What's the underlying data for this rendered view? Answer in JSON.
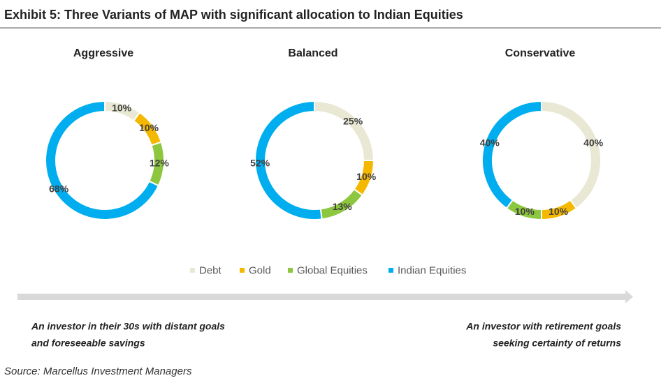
{
  "title": "Exhibit 5: Three Variants of MAP with significant allocation to Indian Equities",
  "chart_data": [
    {
      "type": "donut",
      "title": "Aggressive",
      "categories": [
        "Debt",
        "Gold",
        "Global Equities",
        "Indian Equities"
      ],
      "values": [
        10,
        10,
        12,
        68
      ],
      "value_labels": [
        "10%",
        "10%",
        "12%",
        "68%"
      ],
      "colors": [
        "#e9e8d4",
        "#f5b800",
        "#8dc63f",
        "#00aeef"
      ]
    },
    {
      "type": "donut",
      "title": "Balanced",
      "categories": [
        "Debt",
        "Gold",
        "Global Equities",
        "Indian Equities"
      ],
      "values": [
        25,
        10,
        13,
        52
      ],
      "value_labels": [
        "25%",
        "10%",
        "13%",
        "52%"
      ],
      "colors": [
        "#e9e8d4",
        "#f5b800",
        "#8dc63f",
        "#00aeef"
      ]
    },
    {
      "type": "donut",
      "title": "Conservative",
      "categories": [
        "Debt",
        "Gold",
        "Global Equities",
        "Indian Equities"
      ],
      "values": [
        40,
        10,
        10,
        40
      ],
      "value_labels": [
        "40%",
        "10%",
        "10%",
        "40%"
      ],
      "colors": [
        "#e9e8d4",
        "#f5b800",
        "#8dc63f",
        "#00aeef"
      ]
    }
  ],
  "left_note": [
    "An investor in their 30s with distant goals",
    "and foreseeable savings"
  ],
  "right_note": [
    "An investor with retirement goals",
    "seeking certainty of returns"
  ],
  "source": "Source: Marcellus Investment Managers"
}
